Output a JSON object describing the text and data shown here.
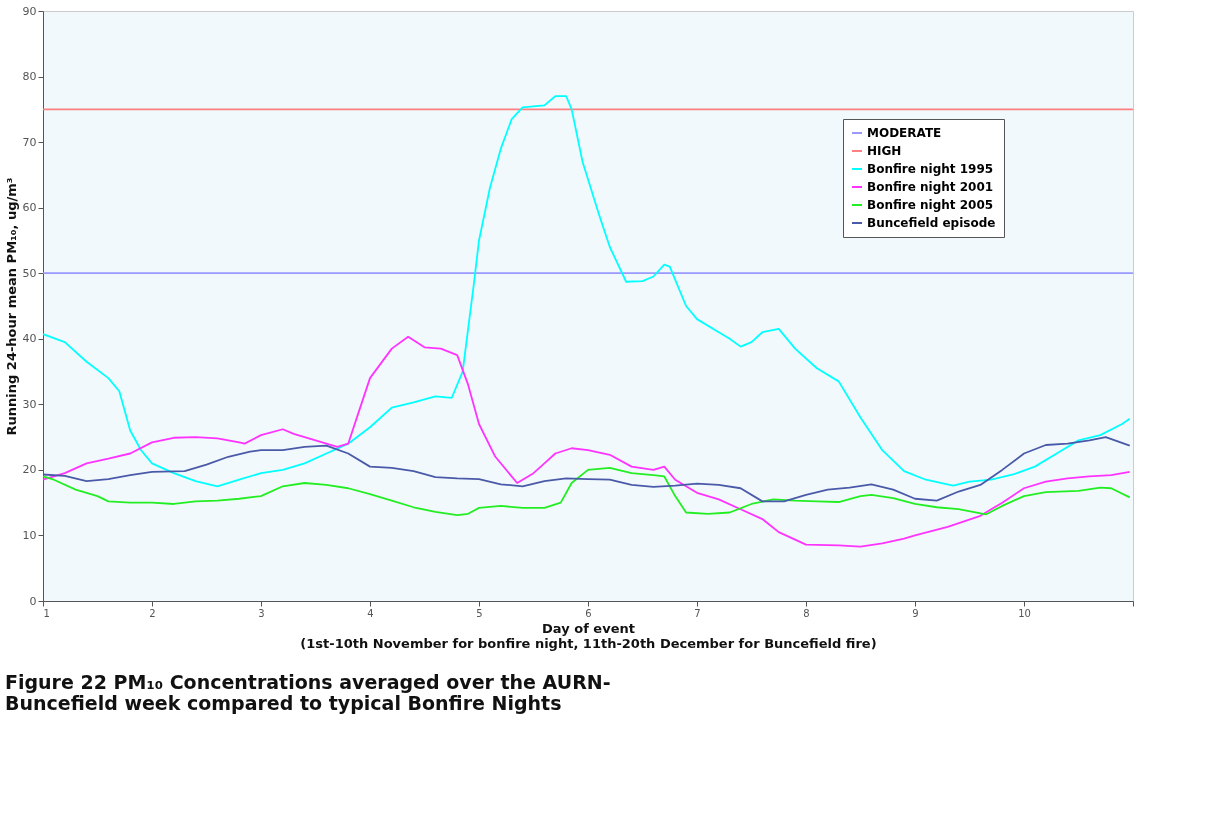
{
  "chart_data": {
    "type": "line",
    "title": "Figure 22 PM₁₀ Concentrations averaged over the AURN- Buncefield week compared to typical Bonfire Nights",
    "xlabel": "Day of event\n(1st-10th November for bonfire night, 11th-20th December for Buncefield fire)",
    "ylabel": "Running 24-hour mean PM₁₀, ug/m³",
    "xlim": [
      1,
      11
    ],
    "xticks": [
      1,
      2,
      3,
      4,
      5,
      6,
      7,
      8,
      9,
      10,
      {
        "value": 11,
        "label": null
      }
    ],
    "ylim": [
      0,
      90
    ],
    "yticks": [
      0,
      10,
      20,
      30,
      40,
      50,
      60,
      70,
      80,
      90
    ],
    "grid": false,
    "legend": "top right",
    "marker": "none",
    "line_style": "solid",
    "series": [
      {
        "name": "MODERATE",
        "color": "#9999ff",
        "x": [
          1,
          11
        ],
        "values": [
          50,
          50
        ]
      },
      {
        "name": "HIGH",
        "color": "#ff8080",
        "x": [
          1,
          11
        ],
        "values": [
          75,
          75
        ]
      },
      {
        "name": "Bonfire night 1995",
        "color": "#00ffff",
        "x": [
          1,
          1.2,
          1.4,
          1.6,
          1.7,
          1.8,
          1.9,
          2.0,
          2.2,
          2.4,
          2.6,
          2.8,
          3.0,
          3.2,
          3.4,
          3.6,
          3.8,
          4.0,
          4.2,
          4.4,
          4.6,
          4.75,
          4.85,
          4.95,
          5.0,
          5.1,
          5.2,
          5.3,
          5.4,
          5.6,
          5.7,
          5.8,
          5.85,
          5.95,
          6.1,
          6.2,
          6.35,
          6.5,
          6.6,
          6.7,
          6.75,
          6.9,
          7.0,
          7.2,
          7.3,
          7.4,
          7.5,
          7.6,
          7.75,
          7.9,
          8.1,
          8.3,
          8.5,
          8.7,
          8.9,
          9.1,
          9.35,
          9.5,
          9.7,
          9.9,
          10.1,
          10.3,
          10.5,
          10.7,
          10.9,
          10.97
        ],
        "values": [
          40.7,
          39.5,
          36.5,
          34,
          32,
          26,
          23,
          21,
          19.5,
          18.3,
          17.5,
          18.5,
          19.5,
          20,
          21,
          22.5,
          24,
          26.5,
          29.5,
          30.3,
          31.2,
          31,
          35,
          48,
          55,
          63,
          69,
          73.5,
          75.3,
          75.6,
          77,
          77,
          75,
          67,
          59,
          54,
          48.7,
          48.8,
          49.5,
          51.3,
          51,
          45,
          43,
          41,
          40,
          38.8,
          39.5,
          41,
          41.5,
          38.5,
          35.5,
          33.5,
          28,
          23,
          19.8,
          18.5,
          17.6,
          18.2,
          18.5,
          19.3,
          20.5,
          22.5,
          24.5,
          25.3,
          27,
          27.8
        ]
      },
      {
        "name": "Bonfire night 2001",
        "color": "#ff33ff",
        "x": [
          1,
          1.2,
          1.4,
          1.6,
          1.8,
          2.0,
          2.2,
          2.4,
          2.6,
          2.8,
          2.85,
          3.0,
          3.2,
          3.3,
          3.5,
          3.7,
          3.8,
          3.9,
          4.0,
          4.2,
          4.35,
          4.5,
          4.65,
          4.8,
          4.9,
          5.0,
          5.15,
          5.35,
          5.5,
          5.6,
          5.7,
          5.85,
          6.0,
          6.2,
          6.4,
          6.6,
          6.7,
          6.8,
          7.0,
          7.2,
          7.4,
          7.6,
          7.75,
          8.0,
          8.3,
          8.5,
          8.7,
          8.9,
          9.0,
          9.3,
          9.6,
          9.8,
          10.0,
          10.2,
          10.4,
          10.6,
          10.8,
          10.97
        ],
        "values": [
          18.5,
          19.5,
          21,
          21.7,
          22.5,
          24.2,
          24.9,
          25,
          24.8,
          24.2,
          24,
          25.3,
          26.2,
          25.5,
          24.5,
          23.5,
          24,
          29,
          34,
          38.5,
          40.3,
          38.7,
          38.5,
          37.5,
          33,
          27,
          22,
          18,
          19.5,
          21,
          22.5,
          23.3,
          23,
          22.3,
          20.5,
          20,
          20.5,
          18.5,
          16.5,
          15.5,
          14,
          12.5,
          10.5,
          8.6,
          8.5,
          8.3,
          8.8,
          9.5,
          10,
          11.3,
          13,
          15,
          17.2,
          18.2,
          18.7,
          19,
          19.2,
          19.7
        ]
      },
      {
        "name": "Bonfire night 2005",
        "color": "#22ee22",
        "x": [
          1,
          1.1,
          1.3,
          1.5,
          1.6,
          1.8,
          2.0,
          2.2,
          2.4,
          2.6,
          2.8,
          3.0,
          3.2,
          3.4,
          3.6,
          3.8,
          4.0,
          4.2,
          4.4,
          4.6,
          4.8,
          4.9,
          5.0,
          5.2,
          5.4,
          5.6,
          5.75,
          5.85,
          6.0,
          6.2,
          6.4,
          6.6,
          6.7,
          6.8,
          6.9,
          7.1,
          7.3,
          7.5,
          7.7,
          7.9,
          8.1,
          8.3,
          8.5,
          8.6,
          8.8,
          9.0,
          9.2,
          9.4,
          9.65,
          9.8,
          10.0,
          10.2,
          10.5,
          10.7,
          10.8,
          10.97
        ],
        "values": [
          19,
          18.5,
          17,
          16,
          15.2,
          15,
          15,
          14.8,
          15.2,
          15.3,
          15.6,
          16,
          17.5,
          18,
          17.7,
          17.2,
          16.3,
          15.3,
          14.3,
          13.6,
          13.1,
          13.3,
          14.2,
          14.5,
          14.2,
          14.2,
          15,
          18,
          20,
          20.3,
          19.5,
          19.2,
          19,
          16,
          13.5,
          13.3,
          13.5,
          14.8,
          15.5,
          15.3,
          15.2,
          15.1,
          16,
          16.2,
          15.7,
          14.8,
          14.3,
          14,
          13.2,
          14.5,
          16,
          16.6,
          16.8,
          17.3,
          17.2,
          15.8
        ]
      },
      {
        "name": "Buncefield episode",
        "color": "#4a5aa8",
        "x": [
          1,
          1.2,
          1.4,
          1.6,
          1.8,
          2.0,
          2.3,
          2.5,
          2.7,
          2.9,
          3.0,
          3.2,
          3.4,
          3.6,
          3.8,
          4.0,
          4.2,
          4.4,
          4.6,
          4.8,
          5.0,
          5.2,
          5.4,
          5.6,
          5.8,
          6.0,
          6.2,
          6.4,
          6.6,
          6.8,
          7.0,
          7.2,
          7.4,
          7.6,
          7.8,
          8.0,
          8.2,
          8.4,
          8.6,
          8.8,
          9.0,
          9.2,
          9.4,
          9.6,
          9.8,
          10.0,
          10.2,
          10.4,
          10.6,
          10.75,
          10.97
        ],
        "values": [
          19.3,
          19.1,
          18.3,
          18.6,
          19.2,
          19.7,
          19.8,
          20.8,
          22,
          22.8,
          23,
          23,
          23.5,
          23.7,
          22.5,
          20.5,
          20.3,
          19.8,
          18.9,
          18.7,
          18.6,
          17.8,
          17.5,
          18.3,
          18.7,
          18.6,
          18.5,
          17.7,
          17.4,
          17.6,
          17.9,
          17.7,
          17.2,
          15.2,
          15.2,
          16.2,
          17,
          17.3,
          17.8,
          17,
          15.6,
          15.3,
          16.7,
          17.7,
          20,
          22.5,
          23.8,
          24,
          24.5,
          25,
          23.7
        ]
      }
    ]
  }
}
